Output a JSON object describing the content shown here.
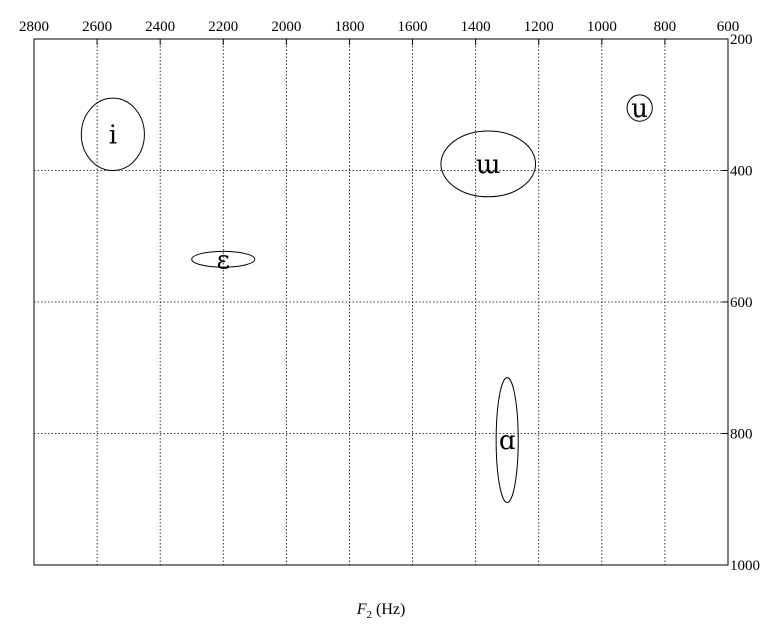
{
  "chart_data": {
    "type": "scatter",
    "title": "",
    "xlabel_main": "F",
    "xlabel_sub": "2",
    "xlabel_unit": " (Hz)",
    "ylabel": "",
    "xlim": [
      2800,
      600
    ],
    "ylim": [
      200,
      1000
    ],
    "x_ticks": [
      2800,
      2600,
      2400,
      2200,
      2000,
      1800,
      1600,
      1400,
      1200,
      1000,
      800,
      600
    ],
    "y_ticks": [
      200,
      400,
      600,
      800,
      1000
    ],
    "x_tick_labels": [
      "2800",
      "2600",
      "2400",
      "2200",
      "2000",
      "1800",
      "1600",
      "1400",
      "1200",
      "1000",
      "800",
      "600"
    ],
    "y_tick_labels": [
      "200",
      "400",
      "600",
      "800",
      "1000"
    ],
    "grid": true,
    "x_axis_position": "top",
    "y_axis_position": "right",
    "points": [
      {
        "label": "i",
        "x": 2550,
        "y": 345,
        "x_spread": 100,
        "y_spread": 55
      },
      {
        "label": "ɛ",
        "x": 2200,
        "y": 535,
        "x_spread": 100,
        "y_spread": 12
      },
      {
        "label": "ɯ",
        "x": 1360,
        "y": 390,
        "x_spread": 150,
        "y_spread": 50
      },
      {
        "label": "u",
        "x": 880,
        "y": 305,
        "x_spread": 40,
        "y_spread": 20
      },
      {
        "label": "ɑ",
        "x": 1300,
        "y": 810,
        "x_spread": 35,
        "y_spread": 95
      }
    ]
  }
}
